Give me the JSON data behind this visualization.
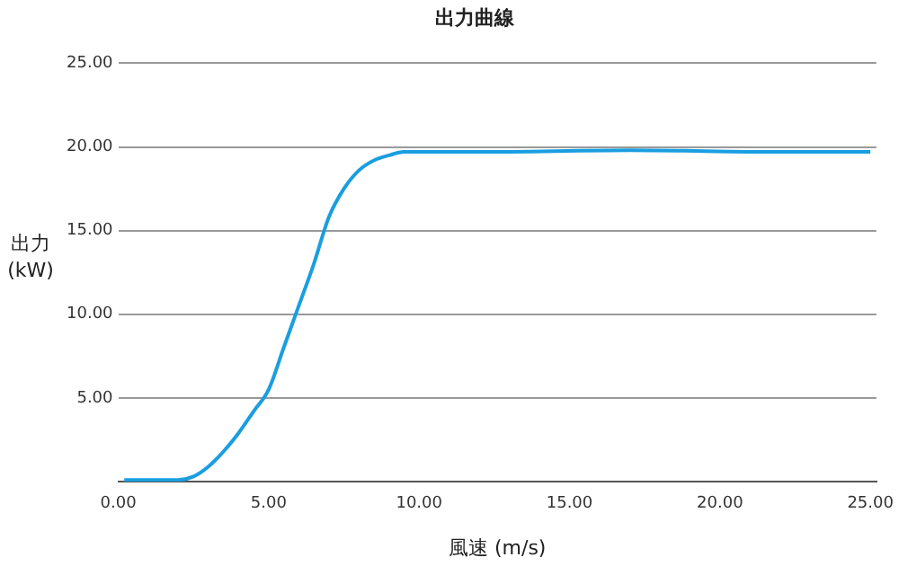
{
  "chart_data": {
    "type": "line",
    "title": "出力曲線",
    "xlabel": "風速 (m/s)",
    "ylabel": "出力 (kW)",
    "xlim": [
      0,
      25.2
    ],
    "xticks": [
      {
        "value": 0,
        "label": "0.00"
      },
      {
        "value": 5,
        "label": "5.00"
      },
      {
        "value": 10,
        "label": "10.00"
      },
      {
        "value": 15,
        "label": "15.00"
      },
      {
        "value": 20,
        "label": "20.00"
      },
      {
        "value": 25,
        "label": "25.00"
      }
    ],
    "ylim": [
      0,
      25
    ],
    "yticks": [
      {
        "value": 0,
        "label": null
      },
      {
        "value": 5,
        "label": "5.00"
      },
      {
        "value": 10,
        "label": "10.00"
      },
      {
        "value": 15,
        "label": "15.00"
      },
      {
        "value": 20,
        "label": "20.00"
      },
      {
        "value": 25,
        "label": "25.00"
      }
    ],
    "grid": "y",
    "legend": false,
    "marker": "none",
    "line_style": "solid",
    "series": [
      {
        "color": "#1a9ee0",
        "x": [
          0.2,
          2,
          2.5,
          3,
          3.5,
          4,
          4.5,
          5,
          5.5,
          6,
          6.5,
          7,
          7.5,
          8,
          8.5,
          9,
          9.5,
          10,
          12,
          17,
          22,
          25
        ],
        "values": [
          0.1,
          0.1,
          0.3,
          0.9,
          1.8,
          2.9,
          4.2,
          5.5,
          8,
          10.5,
          13,
          15.8,
          17.5,
          18.6,
          19.2,
          19.5,
          19.7,
          19.7,
          19.7,
          19.8,
          19.7,
          19.7
        ]
      }
    ]
  }
}
